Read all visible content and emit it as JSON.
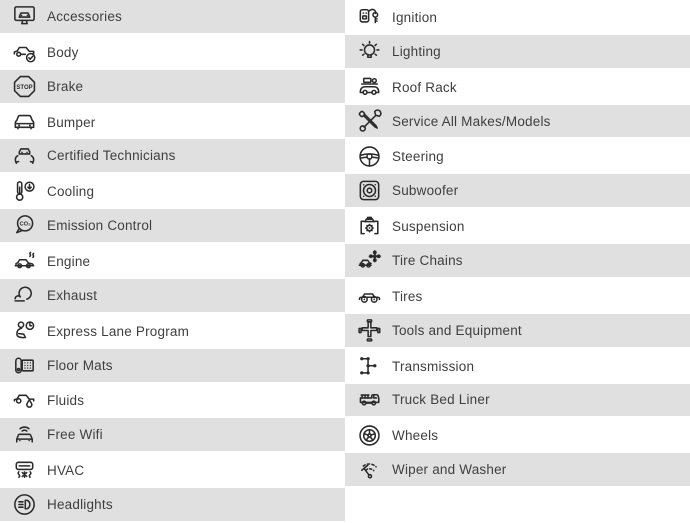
{
  "colors": {
    "shaded_row": "#e0e0e0",
    "background": "#ffffff",
    "label_text": "#3f3f3f",
    "icon_stroke": "#2b2b2b"
  },
  "list": {
    "left_column": [
      {
        "label": "Accessories",
        "icon": "accessories-icon"
      },
      {
        "label": "Body",
        "icon": "body-icon"
      },
      {
        "label": "Brake",
        "icon": "brake-icon"
      },
      {
        "label": "Bumper",
        "icon": "bumper-icon"
      },
      {
        "label": "Certified Technicians",
        "icon": "certified-technicians-icon"
      },
      {
        "label": "Cooling",
        "icon": "cooling-icon"
      },
      {
        "label": "Emission Control",
        "icon": "emission-control-icon"
      },
      {
        "label": "Engine",
        "icon": "engine-icon"
      },
      {
        "label": "Exhaust",
        "icon": "exhaust-icon"
      },
      {
        "label": "Express Lane Program",
        "icon": "express-lane-icon"
      },
      {
        "label": "Floor Mats",
        "icon": "floor-mats-icon"
      },
      {
        "label": "Fluids",
        "icon": "fluids-icon"
      },
      {
        "label": "Free Wifi",
        "icon": "free-wifi-icon"
      },
      {
        "label": "HVAC",
        "icon": "hvac-icon"
      },
      {
        "label": "Headlights",
        "icon": "headlights-icon"
      }
    ],
    "right_column": [
      {
        "label": "Ignition",
        "icon": "ignition-icon"
      },
      {
        "label": "Lighting",
        "icon": "lighting-icon"
      },
      {
        "label": "Roof Rack",
        "icon": "roof-rack-icon"
      },
      {
        "label": "Service All Makes/Models",
        "icon": "service-all-makes-icon"
      },
      {
        "label": "Steering",
        "icon": "steering-icon"
      },
      {
        "label": "Subwoofer",
        "icon": "subwoofer-icon"
      },
      {
        "label": "Suspension",
        "icon": "suspension-icon"
      },
      {
        "label": "Tire Chains",
        "icon": "tire-chains-icon"
      },
      {
        "label": "Tires",
        "icon": "tires-icon"
      },
      {
        "label": "Tools and Equipment",
        "icon": "tools-equipment-icon"
      },
      {
        "label": "Transmission",
        "icon": "transmission-icon"
      },
      {
        "label": "Truck Bed Liner",
        "icon": "truck-bed-liner-icon"
      },
      {
        "label": "Wheels",
        "icon": "wheels-icon"
      },
      {
        "label": "Wiper and Washer",
        "icon": "wiper-washer-icon"
      }
    ]
  }
}
